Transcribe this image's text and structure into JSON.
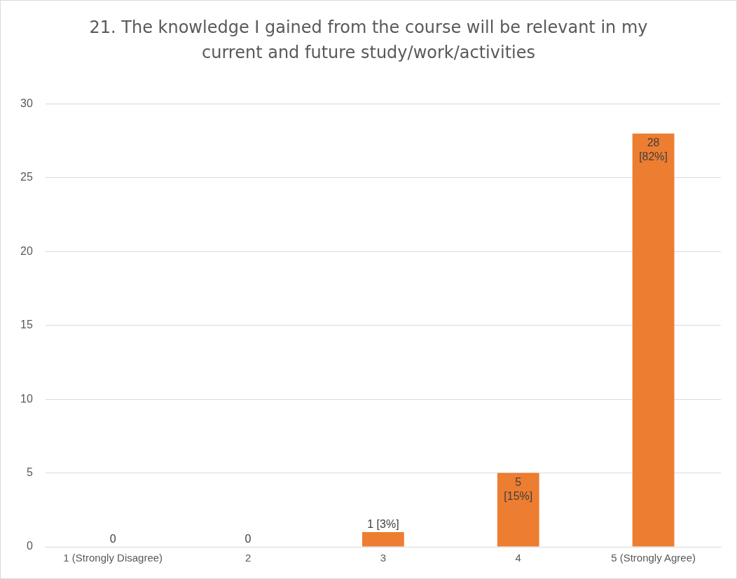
{
  "chart_data": {
    "type": "bar",
    "title": "21. The knowledge I gained from the course will be relevant in my current and future study/work/activities",
    "categories": [
      "1 (Strongly Disagree)",
      "2",
      "3",
      "4",
      "5 (Strongly Agree)"
    ],
    "values": [
      0,
      0,
      1,
      5,
      28
    ],
    "value_labels": [
      "0",
      "0",
      "1 [3%]",
      "5 [15%]",
      "28 [82%]"
    ],
    "color": "#ed7d31",
    "ylim": [
      0,
      30
    ],
    "yticks": [
      0,
      5,
      10,
      15,
      20,
      25,
      30
    ],
    "grid": "y",
    "legend": false
  }
}
